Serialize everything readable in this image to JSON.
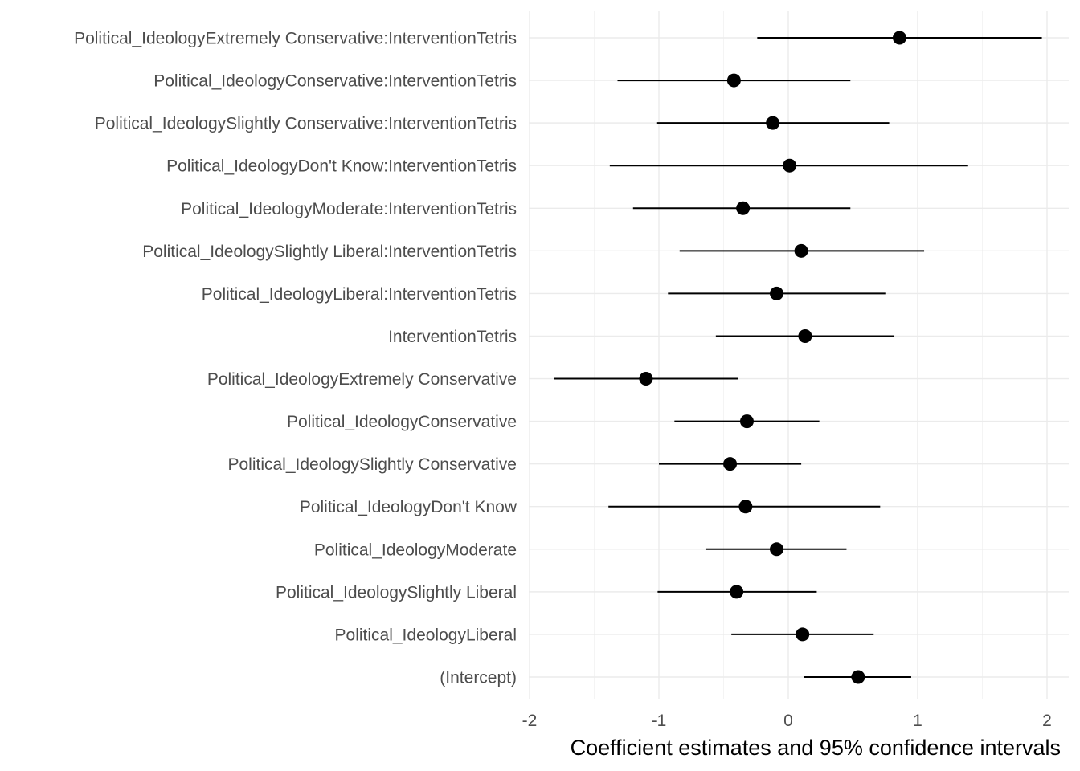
{
  "chart_data": {
    "type": "scatter",
    "xlabel": "Coefficient estimates and 95% confidence intervals",
    "ylabel": "",
    "xlim": [
      -2.0,
      2.0
    ],
    "x_ticks": [
      -2,
      -1,
      0,
      1,
      2
    ],
    "x_tick_labels": [
      "-2",
      "-1",
      "0",
      "1",
      "2"
    ],
    "grid": true,
    "terms": [
      {
        "label": "Political_IdeologyExtremely Conservative:InterventionTetris",
        "estimate": 0.86,
        "lower": -0.24,
        "upper": 1.96
      },
      {
        "label": "Political_IdeologyConservative:InterventionTetris",
        "estimate": -0.42,
        "lower": -1.32,
        "upper": 0.48
      },
      {
        "label": "Political_IdeologySlightly Conservative:InterventionTetris",
        "estimate": -0.12,
        "lower": -1.02,
        "upper": 0.78
      },
      {
        "label": "Political_IdeologyDon't Know:InterventionTetris",
        "estimate": 0.01,
        "lower": -1.38,
        "upper": 1.39
      },
      {
        "label": "Political_IdeologyModerate:InterventionTetris",
        "estimate": -0.35,
        "lower": -1.2,
        "upper": 0.48
      },
      {
        "label": "Political_IdeologySlightly Liberal:InterventionTetris",
        "estimate": 0.1,
        "lower": -0.84,
        "upper": 1.05
      },
      {
        "label": "Political_IdeologyLiberal:InterventionTetris",
        "estimate": -0.09,
        "lower": -0.93,
        "upper": 0.75
      },
      {
        "label": "InterventionTetris",
        "estimate": 0.13,
        "lower": -0.56,
        "upper": 0.82
      },
      {
        "label": "Political_IdeologyExtremely Conservative",
        "estimate": -1.1,
        "lower": -1.81,
        "upper": -0.39
      },
      {
        "label": "Political_IdeologyConservative",
        "estimate": -0.32,
        "lower": -0.88,
        "upper": 0.24
      },
      {
        "label": "Political_IdeologySlightly Conservative",
        "estimate": -0.45,
        "lower": -1.0,
        "upper": 0.1
      },
      {
        "label": "Political_IdeologyDon't Know",
        "estimate": -0.33,
        "lower": -1.39,
        "upper": 0.71
      },
      {
        "label": "Political_IdeologyModerate",
        "estimate": -0.09,
        "lower": -0.64,
        "upper": 0.45
      },
      {
        "label": "Political_IdeologySlightly Liberal",
        "estimate": -0.4,
        "lower": -1.01,
        "upper": 0.22
      },
      {
        "label": "Political_IdeologyLiberal",
        "estimate": 0.11,
        "lower": -0.44,
        "upper": 0.66
      },
      {
        "label": "(Intercept)",
        "estimate": 0.54,
        "lower": 0.12,
        "upper": 0.95
      }
    ]
  }
}
